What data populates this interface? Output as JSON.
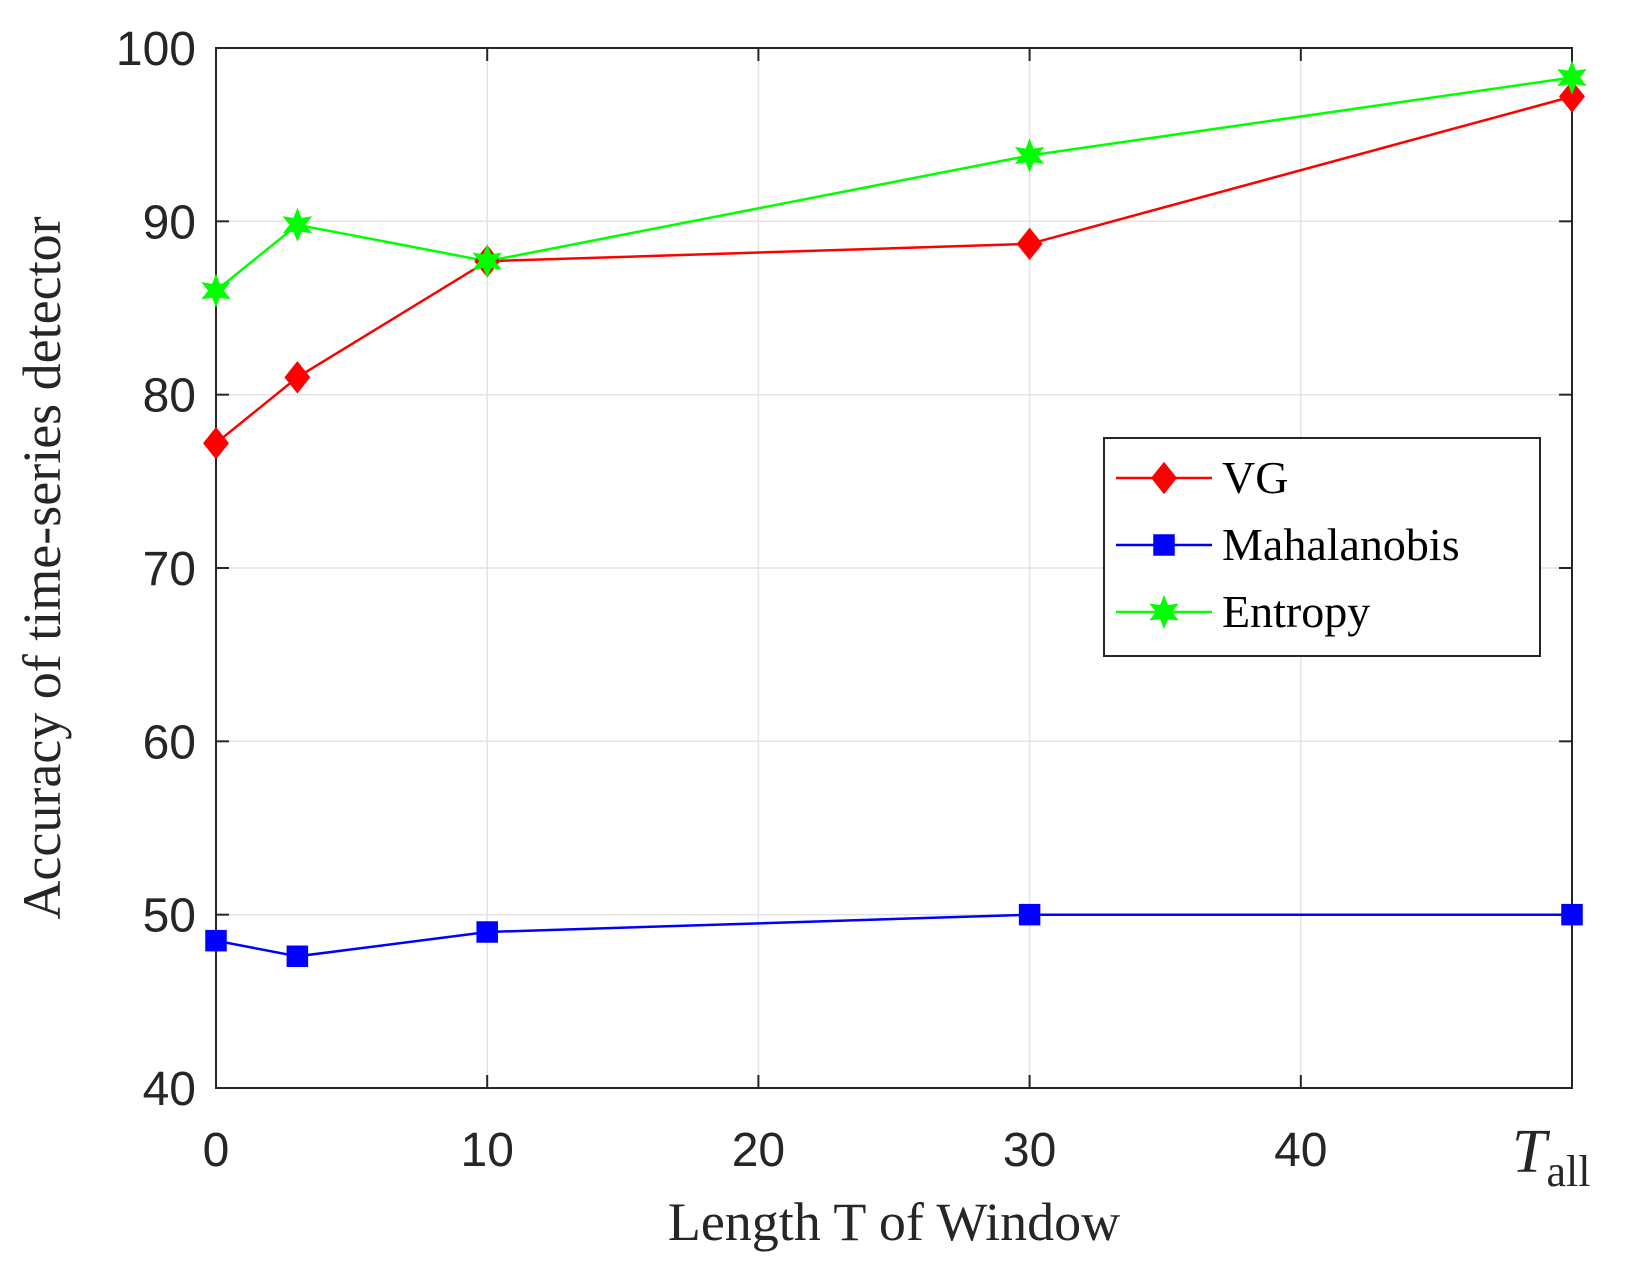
{
  "chart_data": {
    "type": "line",
    "title": "",
    "xlabel": "Length T of Window",
    "ylabel": "Accuracy of time-series detector",
    "xlim": [
      0,
      50
    ],
    "ylim": [
      40,
      100
    ],
    "x_ticks": [
      0,
      10,
      20,
      30,
      40,
      50
    ],
    "x_tick_labels": [
      "0",
      "10",
      "20",
      "30",
      "40",
      ""
    ],
    "x_last_tick_label": {
      "main": "T",
      "sub": "all"
    },
    "y_ticks": [
      40,
      50,
      60,
      70,
      80,
      90,
      100
    ],
    "y_tick_labels": [
      "40",
      "50",
      "60",
      "70",
      "80",
      "90",
      "100"
    ],
    "grid": true,
    "legend_position": "center-right",
    "x": [
      0,
      3,
      10,
      30,
      50
    ],
    "series": [
      {
        "name": "VG",
        "color": "#ff0000",
        "marker": "diamond",
        "values": [
          77.2,
          81.0,
          87.7,
          88.7,
          97.2
        ]
      },
      {
        "name": "Mahalanobis",
        "color": "#0000ff",
        "marker": "square",
        "values": [
          48.5,
          47.6,
          49.0,
          50.0,
          50.0
        ]
      },
      {
        "name": "Entropy",
        "color": "#00ff00",
        "marker": "star",
        "values": [
          86.0,
          89.8,
          87.7,
          93.8,
          98.3
        ]
      }
    ]
  }
}
